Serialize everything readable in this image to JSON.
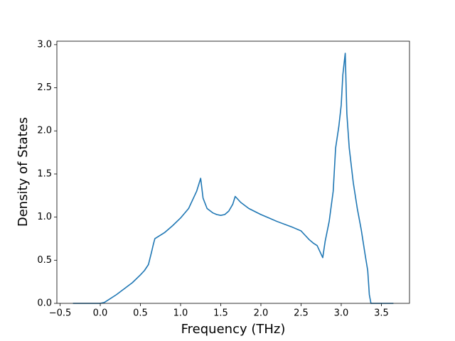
{
  "chart_data": {
    "type": "line",
    "x_label": "Frequency (THz)",
    "y_label": "Density of States",
    "x": [
      -0.34,
      0.0,
      0.05,
      0.1,
      0.2,
      0.3,
      0.4,
      0.5,
      0.55,
      0.6,
      0.64,
      0.66,
      0.68,
      0.8,
      0.9,
      1.0,
      1.1,
      1.2,
      1.25,
      1.28,
      1.33,
      1.4,
      1.45,
      1.5,
      1.55,
      1.6,
      1.65,
      1.68,
      1.75,
      1.85,
      2.0,
      2.2,
      2.4,
      2.5,
      2.55,
      2.6,
      2.65,
      2.7,
      2.77,
      2.8,
      2.85,
      2.9,
      2.93,
      2.97,
      3.0,
      3.02,
      3.05,
      3.07,
      3.1,
      3.15,
      3.2,
      3.25,
      3.3,
      3.33,
      3.35,
      3.37,
      3.65
    ],
    "series": [
      {
        "name": "DOS",
        "color": "#1f77b4",
        "values": [
          0,
          0,
          0.01,
          0.04,
          0.1,
          0.17,
          0.24,
          0.33,
          0.38,
          0.45,
          0.6,
          0.68,
          0.75,
          0.82,
          0.9,
          0.99,
          1.1,
          1.3,
          1.45,
          1.22,
          1.1,
          1.05,
          1.03,
          1.02,
          1.03,
          1.07,
          1.15,
          1.24,
          1.17,
          1.1,
          1.03,
          0.95,
          0.88,
          0.84,
          0.79,
          0.74,
          0.7,
          0.67,
          0.53,
          0.72,
          0.95,
          1.3,
          1.8,
          2.05,
          2.3,
          2.65,
          2.9,
          2.2,
          1.8,
          1.4,
          1.1,
          0.85,
          0.55,
          0.38,
          0.1,
          0,
          0
        ]
      }
    ],
    "xlim": [
      -0.54,
      3.85
    ],
    "ylim": [
      0,
      3.04
    ],
    "xticks": [
      {
        "value": -0.5,
        "label": "−0.5"
      },
      {
        "value": 0,
        "label": "0.0"
      },
      0.5,
      {
        "value": 1,
        "label": "1.0"
      },
      1.5,
      {
        "value": 2,
        "label": "2.0"
      },
      2.5,
      {
        "value": 3,
        "label": "3.0"
      },
      3.5
    ],
    "yticks": [
      {
        "value": 0,
        "label": "0.0"
      },
      0.5,
      {
        "value": 1,
        "label": "1.0"
      },
      1.5,
      {
        "value": 2,
        "label": "2.0"
      },
      2.5,
      {
        "value": 3,
        "label": "3.0"
      }
    ]
  }
}
